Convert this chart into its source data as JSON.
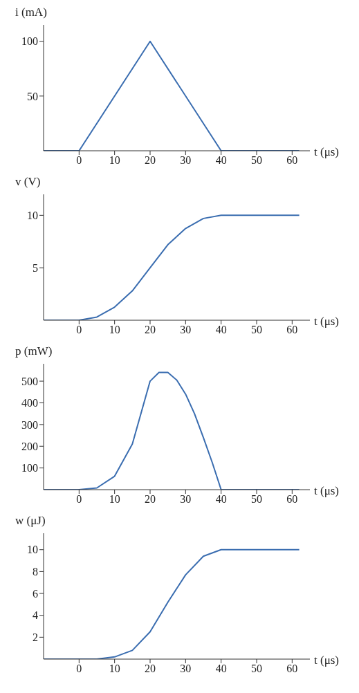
{
  "chart_data": [
    {
      "type": "line",
      "ylabel": "i (mA)",
      "xlabel": "t (μs)",
      "x": [
        -10,
        0,
        20,
        40,
        62
      ],
      "values": [
        0,
        0,
        100,
        0,
        0
      ],
      "color": "#3a6db0",
      "xlim": [
        -10,
        65
      ],
      "xticks": [
        0,
        10,
        20,
        30,
        40,
        50,
        60
      ],
      "ylim": [
        0,
        115
      ],
      "yticks": [
        50,
        100
      ],
      "marker": "none"
    },
    {
      "type": "line",
      "ylabel": "v (V)",
      "xlabel": "t (μs)",
      "x": [
        -10,
        0,
        5,
        10,
        15,
        20,
        25,
        30,
        35,
        40,
        62
      ],
      "values": [
        0,
        0,
        0.3,
        1.25,
        2.8,
        5,
        7.2,
        8.75,
        9.7,
        10,
        10
      ],
      "color": "#3a6db0",
      "xlim": [
        -10,
        65
      ],
      "xticks": [
        0,
        10,
        20,
        30,
        40,
        50,
        60
      ],
      "ylim": [
        0,
        12
      ],
      "yticks": [
        5,
        10
      ],
      "marker": "none"
    },
    {
      "type": "line",
      "ylabel": "p (mW)",
      "xlabel": "t (μs)",
      "x": [
        -10,
        0,
        5,
        10,
        15,
        20,
        22.5,
        25,
        27.5,
        30,
        32.5,
        35,
        37.5,
        40,
        62
      ],
      "values": [
        0,
        0,
        8,
        62,
        210,
        500,
        540,
        540,
        505,
        440,
        350,
        240,
        125,
        0,
        0
      ],
      "color": "#3a6db0",
      "xlim": [
        -10,
        65
      ],
      "xticks": [
        0,
        10,
        20,
        30,
        40,
        50,
        60
      ],
      "ylim": [
        0,
        580
      ],
      "yticks": [
        100,
        200,
        300,
        400,
        500
      ],
      "marker": "none"
    },
    {
      "type": "line",
      "ylabel": "w (μJ)",
      "xlabel": "t (μs)",
      "x": [
        -10,
        0,
        5,
        10,
        15,
        20,
        25,
        30,
        35,
        40,
        62
      ],
      "values": [
        0,
        0,
        0,
        0.2,
        0.8,
        2.5,
        5.2,
        7.7,
        9.4,
        10,
        10
      ],
      "color": "#3a6db0",
      "xlim": [
        -10,
        65
      ],
      "xticks": [
        0,
        10,
        20,
        30,
        40,
        50,
        60
      ],
      "ylim": [
        0,
        11.5
      ],
      "yticks": [
        2,
        4,
        6,
        8,
        10
      ],
      "marker": "none"
    }
  ]
}
